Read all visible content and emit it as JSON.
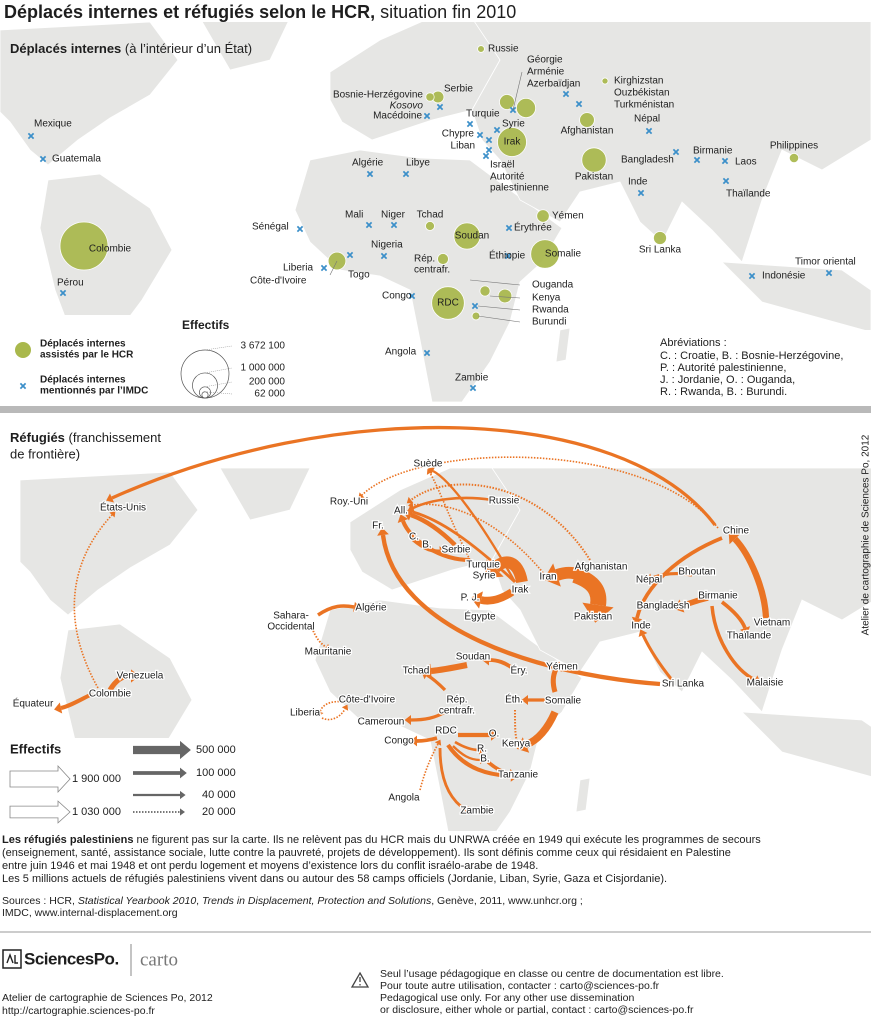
{
  "title": {
    "bold": "Déplacés internes et réfugiés selon le HCR,",
    "rest": " situation fin 2010"
  },
  "idp": {
    "heading": "Déplacés internes",
    "heading_note": " (à l’intérieur d’un État)",
    "hcr": [
      {
        "name": "Russie",
        "value": 75000
      },
      {
        "name": "Géorgie",
        "value": 360000
      },
      {
        "name": "Azerbaïdjan",
        "value": 590000
      },
      {
        "name": "Kirghizstan",
        "value": 60000
      },
      {
        "name": "Bosnie-Herzégovine",
        "value": 113000
      },
      {
        "name": "Serbie",
        "value": 225000
      },
      {
        "name": "Irak",
        "value": 1343600
      },
      {
        "name": "Afghanistan",
        "value": 350000
      },
      {
        "name": "Pakistan",
        "value": 950000
      },
      {
        "name": "Philippines",
        "value": 140000
      },
      {
        "name": "Colombie",
        "value": 3672100
      },
      {
        "name": "Yémen",
        "value": 250000
      },
      {
        "name": "Soudan",
        "value": 1100000
      },
      {
        "name": "Somalie",
        "value": 1300000
      },
      {
        "name": "Tchad",
        "value": 131000
      },
      {
        "name": [
          "Rép.",
          "centrafr."
        ],
        "value": 192000
      },
      {
        "name": "Côte-d'Ivoire",
        "value": 500000
      },
      {
        "name": "RDC",
        "value": 1700000
      },
      {
        "name": "Ouganda",
        "value": 166000
      },
      {
        "name": "Kenya",
        "value": 300000
      },
      {
        "name": "Burundi",
        "value": 100000
      },
      {
        "name": "Sri Lanka",
        "value": 273000
      }
    ],
    "imdc": [
      "Mexique",
      "Guatemala",
      "Pérou",
      "Kosovo",
      "Macédoine",
      "Turquie",
      "Chypre",
      "Liban",
      "Syrie",
      "Israël",
      [
        "Autorité",
        "palestinienne"
      ],
      "Arménie",
      "Ouzbékistan",
      "Turkménistan",
      "Népal",
      "Bangladesh",
      "Birmanie",
      "Laos",
      "Thaïlande",
      "Inde",
      "Indonésie",
      "Timor oriental",
      "Algérie",
      "Libye",
      "Sénégal",
      "Mali",
      "Niger",
      "Nigeria",
      "Togo",
      "Liberia",
      "Érythrée",
      "Éthiopie",
      "Congo",
      "Angola",
      "Zambie",
      "Rwanda"
    ],
    "legend": {
      "hcr": [
        "Déplacés internes",
        "assistés par le HCR"
      ],
      "imdc": [
        "Déplacés internes",
        "mentionnés par l’IMDC"
      ],
      "size_title": "Effectifs",
      "sizes": [
        {
          "value": 3672100,
          "label": "3 672 100"
        },
        {
          "value": 1000000,
          "label": "1 000 000"
        },
        {
          "value": 200000,
          "label": "200 000"
        },
        {
          "value": 62000,
          "label": "62 000"
        }
      ]
    },
    "abbrev": {
      "title": "Abréviations :",
      "lines": [
        "C. : Croatie, B. : Bosnie-Herzégovine,",
        "P. : Autorité palestinienne,",
        "J. : Jordanie, O. : Ouganda,",
        "R. : Rwanda, B. : Burundi."
      ]
    }
  },
  "refugees": {
    "heading": "Réfugiés",
    "heading_note": [
      " (franchissement",
      "de frontière)"
    ],
    "labels": [
      "Suède",
      "Roy.-Uni",
      "Russie",
      "All.",
      "Fr.",
      "C.",
      "B.",
      "Serbie",
      "Turquie",
      "Syrie",
      "Iran",
      "Irak",
      "Afghanistan",
      "P. J.",
      "Égypte",
      "Pakistan",
      "Chine",
      "Népal",
      "Bhoutan",
      "Bangladesh",
      "Birmanie",
      "Inde",
      "Vietnam",
      "Thaïlande",
      "Sri Lanka",
      "Malaisie",
      "États-Unis",
      "Algérie",
      [
        "Sahara-",
        "Occidental"
      ],
      "Mauritanie",
      "Venezuela",
      "Colombie",
      "Équateur",
      "Tchad",
      "Soudan",
      "Éry.",
      "Yémen",
      "Côte-d'Ivoire",
      "Liberia",
      [
        "Rép.",
        "centrafr."
      ],
      "Éth.",
      "Somalie",
      "Cameroun",
      "RDC",
      "Congo",
      "O.",
      "R.",
      "Kenya",
      "B.",
      "Tanzanie",
      "Angola",
      "Zambie"
    ],
    "flows": [
      1900000,
      1030000,
      1030000,
      450000,
      300000,
      100000,
      80000,
      230000,
      100000,
      90000,
      75000,
      70000,
      140000,
      150000,
      120000,
      60000,
      50000,
      20000,
      30000,
      20000,
      70000,
      60000,
      20000,
      40000,
      200000,
      120000,
      20000,
      90000,
      26000,
      270000,
      110000,
      400000,
      190000,
      80000,
      80000,
      80000,
      100000,
      130000,
      55000,
      40000,
      130000,
      60000,
      20000,
      100000,
      20000,
      20000,
      30000
    ],
    "legend": {
      "title": "Effectifs",
      "sizes": [
        {
          "value": 1900000,
          "label": "1 900 000"
        },
        {
          "value": 1030000,
          "label": "1 030 000"
        },
        {
          "value": 500000,
          "label": "500 000"
        },
        {
          "value": 100000,
          "label": "100 000"
        },
        {
          "value": 40000,
          "label": "40 000"
        },
        {
          "value": 20000,
          "label": "20 000"
        }
      ]
    }
  },
  "credit_vertical": "Atelier de cartographie de Sciences Po, 2012",
  "note": {
    "bold": "Les réfugiés palestiniens",
    "rest": " ne figurent pas sur la carte. Ils ne relèvent pas du HCR mais du UNRWA créée en 1949 qui exécute les programmes de secours",
    "lines": [
      "(enseignement, santé, assistance sociale, lutte contre la pauvreté, projets de développement). Ils sont définis comme ceux qui résidaient en Palestine",
      "entre juin 1946 et mai 1948 et ont perdu logement et moyens d’existence lors du conflit israélo-arabe de 1948.",
      "Les 5 millions actuels de réfugiés palestiniens vivent dans ou autour des 58 camps officiels (Jordanie, Liban, Syrie, Gaza et Cisjordanie)."
    ]
  },
  "sources": {
    "a": "Sources : HCR, ",
    "b": "Statistical Yearbook 2010",
    "c": ",  ",
    "d": "Trends in Displacement, Protection and Solutions",
    "e": ", Genève, 2011, www.unhcr.org ;",
    "line2": "IMDC, www.internal-displacement.org"
  },
  "footer": {
    "logo": "SciencesPo.",
    "carto": "carto",
    "credit": [
      "Atelier de cartographie de Sciences Po, 2012",
      "http://cartographie.sciences-po.fr"
    ],
    "usage": [
      "Seul l’usage pédagogique en classe ou centre de documentation est libre.",
      "Pour toute autre utilisation, contacter : carto@sciences-po.fr",
      "Pedagogical use only. For any other use dissemination",
      "or disclosure, either whole or partial, contact : carto@sciences-po.fr"
    ]
  }
}
